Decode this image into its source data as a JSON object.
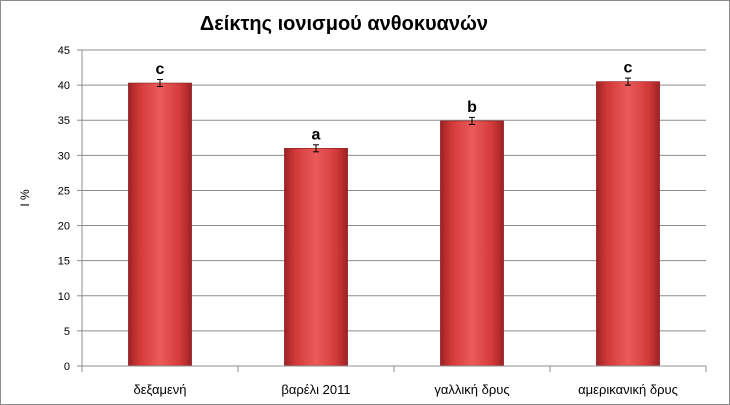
{
  "chart_data": {
    "type": "bar",
    "title": "Δείκτης ιονισμού ανθοκυανών",
    "xlabel": "",
    "ylabel": "I %",
    "categories": [
      "δεξαμενή",
      "βαρέλι 2011",
      "γαλλική δρυς",
      "αμερικανική δρυς"
    ],
    "values": [
      40.3,
      31.0,
      34.9,
      40.5
    ],
    "errors": [
      0.5,
      0.5,
      0.5,
      0.5
    ],
    "significance": [
      "c",
      "a",
      "b",
      "c"
    ],
    "ylim": [
      0,
      45
    ],
    "yticks": [
      0,
      5,
      10,
      15,
      20,
      25,
      30,
      35,
      40,
      45
    ],
    "grid": true,
    "legend": "none",
    "bar_color": "#d94444"
  }
}
